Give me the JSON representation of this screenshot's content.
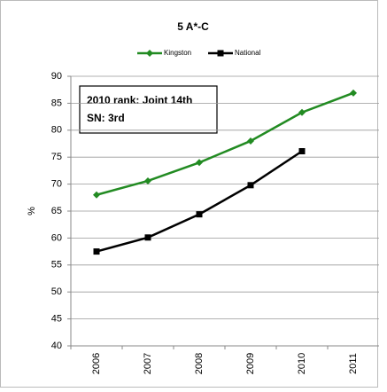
{
  "chart_data": {
    "type": "line",
    "title": "5 A*-C",
    "y_label": "%",
    "annotation": [
      "2010 rank: Joint 14th",
      "SN: 3rd"
    ],
    "categories": [
      "2006",
      "2007",
      "2008",
      "2009",
      "2010",
      "2011"
    ],
    "series": [
      {
        "name": "Kingston",
        "color": "#228b22",
        "marker": "diamond",
        "values": [
          68,
          70.6,
          74,
          78,
          83.3,
          86.9
        ]
      },
      {
        "name": "National",
        "color": "#000000",
        "marker": "square",
        "values": [
          57.5,
          60.1,
          64.4,
          69.8,
          76.1,
          null
        ]
      }
    ],
    "ylim": [
      40,
      90
    ],
    "yticks": [
      40,
      45,
      50,
      55,
      60,
      65,
      70,
      75,
      80,
      85,
      90
    ],
    "grid": true,
    "legend": "top"
  }
}
